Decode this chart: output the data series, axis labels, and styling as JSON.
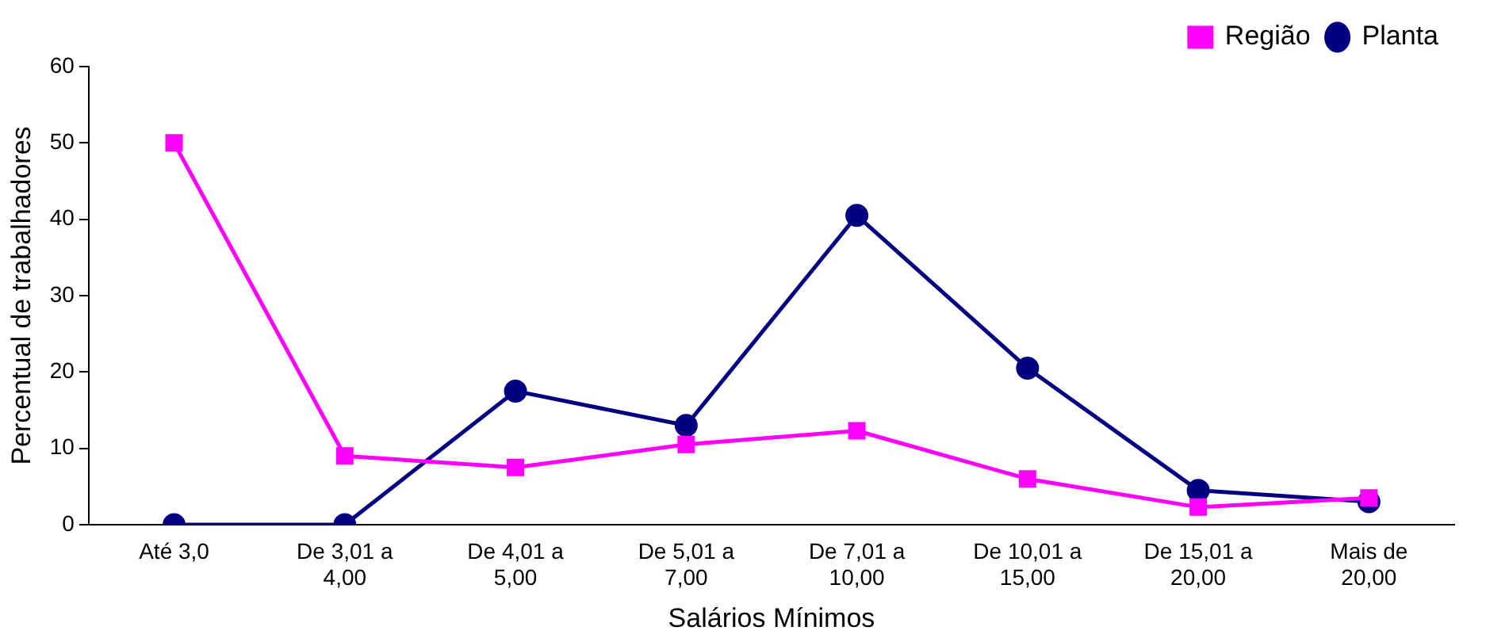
{
  "chart_data": {
    "type": "line",
    "xlabel": "Salários Mínimos",
    "ylabel": "Percentual de trabalhadores",
    "categories": [
      "Até 3,0",
      "De 3,01 a 4,00",
      "De 4,01 a 5,00",
      "De 5,01 a 7,00",
      "De 7,01 a 10,00",
      "De 10,01 a 15,00",
      "De 15,01 a 20,00",
      "Mais de 20,00"
    ],
    "series": [
      {
        "name": "Planta",
        "color": "#000080",
        "marker": "circle",
        "values": [
          0,
          0,
          17.5,
          13,
          40.5,
          20.5,
          4.5,
          3
        ]
      },
      {
        "name": "Região",
        "color": "#ff00ff",
        "marker": "square",
        "values": [
          50,
          9,
          7.5,
          10.5,
          12.3,
          6,
          2.3,
          3.5
        ]
      }
    ],
    "ylim": [
      0,
      60
    ],
    "yticks": [
      0,
      10,
      20,
      30,
      40,
      50,
      60
    ],
    "grid": false,
    "legend": "top right"
  }
}
